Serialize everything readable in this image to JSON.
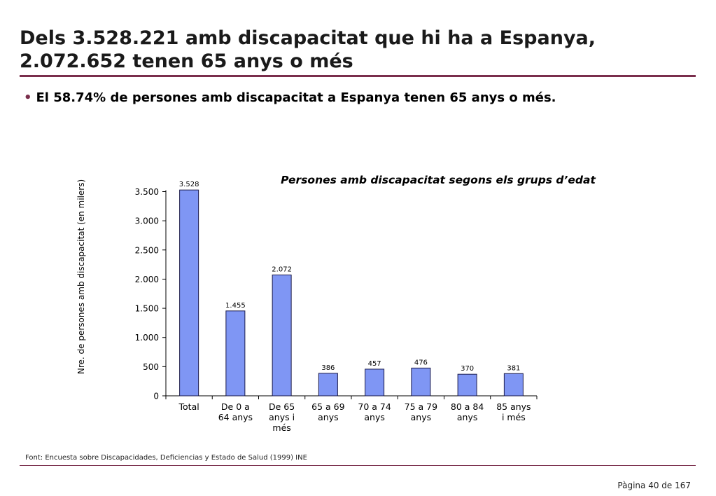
{
  "header": {
    "title_line1": "Dels 3.528.221 amb discapacitat que hi ha a Espanya,",
    "title_line2": "2.072.652 tenen 65 anys o més",
    "bullet_text": "El 58.74% de persones amb discapacitat a Espanya tenen 65 anys o més."
  },
  "footer": {
    "source": "Font: Encuesta sobre Discapacidades, Deficiencias y Estado de Salud (1999) INE",
    "page": "Pàgina 40 de 167"
  },
  "colors": {
    "rule": "#7a2e4c",
    "bar_fill": "#7f96f4",
    "bar_stroke": "#1b1b4a",
    "bullet": "#7a2e4c"
  },
  "chart_data": {
    "type": "bar",
    "title": "Persones amb discapacitat segons els grups d’edat",
    "ylabel": "Nre. de persones amb discapacitat (en milers)",
    "xlabel": "",
    "categories": [
      [
        "Total"
      ],
      [
        "De 0 a",
        "64 anys"
      ],
      [
        "De 65",
        "anys i",
        "més"
      ],
      [
        "65 a 69",
        "anys"
      ],
      [
        "70 a 74",
        "anys"
      ],
      [
        "75 a 79",
        "anys"
      ],
      [
        "80 a 84",
        "anys"
      ],
      [
        "85 anys",
        "i més"
      ]
    ],
    "values": [
      3528,
      1455,
      2072,
      386,
      457,
      476,
      370,
      381
    ],
    "data_labels": [
      "3.528",
      "1.455",
      "2.072",
      "386",
      "457",
      "476",
      "370",
      "381"
    ],
    "yticks": [
      0,
      500,
      1000,
      1500,
      2000,
      2500,
      3000,
      3500
    ],
    "ytick_labels": [
      "0",
      "500",
      "1.000",
      "1.500",
      "2.000",
      "2.500",
      "3.000",
      "3.500"
    ],
    "ylim": [
      0,
      3500
    ],
    "grid": false,
    "legend": "none"
  }
}
